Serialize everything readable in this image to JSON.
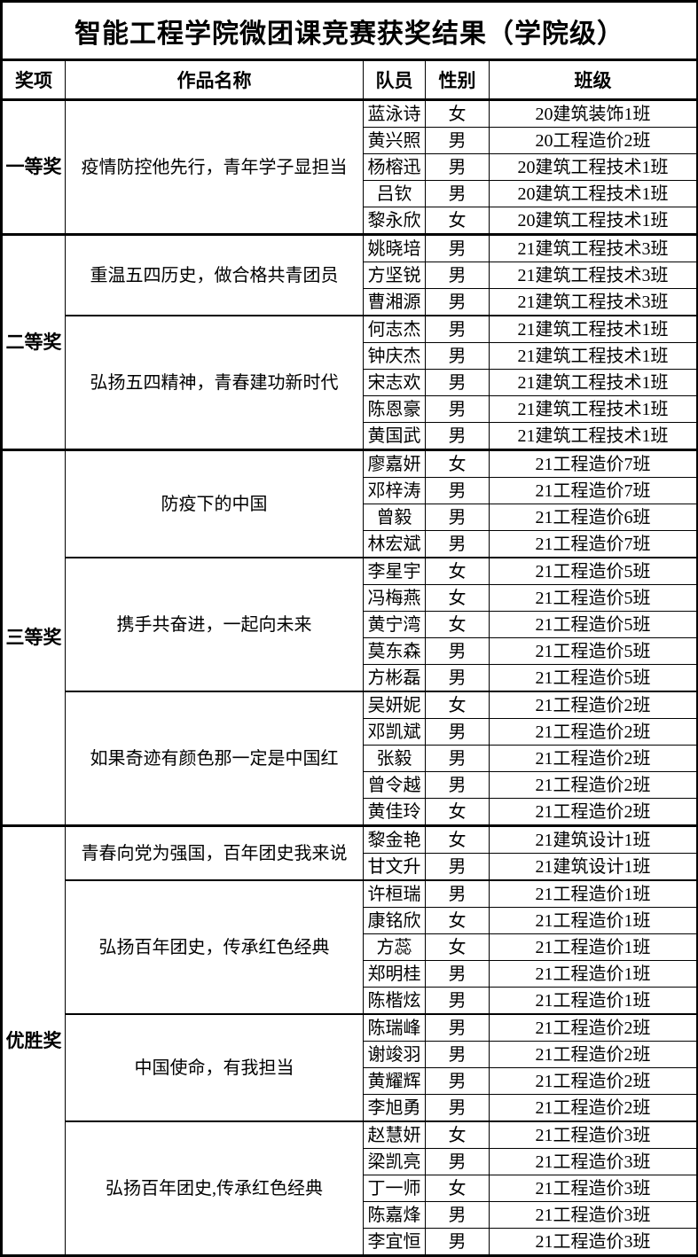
{
  "page": {
    "title": "智能工程学院微团课竞赛获奖结果（学院级）"
  },
  "table": {
    "headers": [
      "奖项",
      "作品名称",
      "队员",
      "性别",
      "班级"
    ],
    "awards": [
      {
        "name": "一等奖",
        "works": [
          {
            "title": "疫情防控他先行，青年学子显担当",
            "members": [
              {
                "name": "蓝泳诗",
                "gender": "女",
                "class": "20建筑装饰1班"
              },
              {
                "name": "黄兴照",
                "gender": "男",
                "class": "20工程造价2班"
              },
              {
                "name": "杨榕迅",
                "gender": "男",
                "class": "20建筑工程技术1班"
              },
              {
                "name": "吕钦",
                "gender": "男",
                "class": "20建筑工程技术1班"
              },
              {
                "name": "黎永欣",
                "gender": "女",
                "class": "20建筑工程技术1班"
              }
            ]
          }
        ]
      },
      {
        "name": "二等奖",
        "works": [
          {
            "title": "重温五四历史，做合格共青团员",
            "members": [
              {
                "name": "姚晓培",
                "gender": "男",
                "class": "21建筑工程技术3班"
              },
              {
                "name": "方坚锐",
                "gender": "男",
                "class": "21建筑工程技术3班"
              },
              {
                "name": "曹湘源",
                "gender": "男",
                "class": "21建筑工程技术3班"
              }
            ]
          },
          {
            "title": "弘扬五四精神，青春建功新时代",
            "members": [
              {
                "name": "何志杰",
                "gender": "男",
                "class": "21建筑工程技术1班"
              },
              {
                "name": "钟庆杰",
                "gender": "男",
                "class": "21建筑工程技术1班"
              },
              {
                "name": "宋志欢",
                "gender": "男",
                "class": "21建筑工程技术1班"
              },
              {
                "name": "陈恩豪",
                "gender": "男",
                "class": "21建筑工程技术1班"
              },
              {
                "name": "黄国武",
                "gender": "男",
                "class": "21建筑工程技术1班"
              }
            ]
          }
        ]
      },
      {
        "name": "三等奖",
        "works": [
          {
            "title": "防疫下的中国",
            "members": [
              {
                "name": "廖嘉妍",
                "gender": "女",
                "class": "21工程造价7班"
              },
              {
                "name": "邓梓涛",
                "gender": "男",
                "class": "21工程造价7班"
              },
              {
                "name": "曾毅",
                "gender": "男",
                "class": "21工程造价6班"
              },
              {
                "name": "林宏斌",
                "gender": "男",
                "class": "21工程造价7班"
              }
            ]
          },
          {
            "title": "携手共奋进，一起向未来",
            "members": [
              {
                "name": "李星宇",
                "gender": "女",
                "class": "21工程造价5班"
              },
              {
                "name": "冯梅燕",
                "gender": "女",
                "class": "21工程造价5班"
              },
              {
                "name": "黄宁湾",
                "gender": "女",
                "class": "21工程造价5班"
              },
              {
                "name": "莫东森",
                "gender": "男",
                "class": "21工程造价5班"
              },
              {
                "name": "方彬磊",
                "gender": "男",
                "class": "21工程造价5班"
              }
            ]
          },
          {
            "title": "如果奇迹有颜色那一定是中国红",
            "members": [
              {
                "name": "吴妍妮",
                "gender": "女",
                "class": "21工程造价2班"
              },
              {
                "name": "邓凯斌",
                "gender": "男",
                "class": "21工程造价2班"
              },
              {
                "name": "张毅",
                "gender": "男",
                "class": "21工程造价2班"
              },
              {
                "name": "曾令越",
                "gender": "男",
                "class": "21工程造价2班"
              },
              {
                "name": "黄佳玲",
                "gender": "女",
                "class": "21工程造价2班"
              }
            ]
          }
        ]
      },
      {
        "name": "优胜奖",
        "works": [
          {
            "title": "青春向党为强国，百年团史我来说",
            "members": [
              {
                "name": "黎金艳",
                "gender": "女",
                "class": "21建筑设计1班"
              },
              {
                "name": "甘文升",
                "gender": "男",
                "class": "21建筑设计1班"
              }
            ]
          },
          {
            "title": "弘扬百年团史，传承红色经典",
            "members": [
              {
                "name": "许桓瑞",
                "gender": "男",
                "class": "21工程造价1班"
              },
              {
                "name": "康铭欣",
                "gender": "女",
                "class": "21工程造价1班"
              },
              {
                "name": "方蕊",
                "gender": "女",
                "class": "21工程造价1班"
              },
              {
                "name": "郑明桂",
                "gender": "男",
                "class": "21工程造价1班"
              },
              {
                "name": "陈楷炫",
                "gender": "男",
                "class": "21工程造价1班"
              }
            ]
          },
          {
            "title": "中国使命，有我担当",
            "members": [
              {
                "name": "陈瑞峰",
                "gender": "男",
                "class": "21工程造价2班"
              },
              {
                "name": "谢竣羽",
                "gender": "男",
                "class": "21工程造价2班"
              },
              {
                "name": "黄耀辉",
                "gender": "男",
                "class": "21工程造价2班"
              },
              {
                "name": "李旭勇",
                "gender": "男",
                "class": "21工程造价2班"
              }
            ]
          },
          {
            "title": "弘扬百年团史,传承红色经典",
            "members": [
              {
                "name": "赵慧妍",
                "gender": "女",
                "class": "21工程造价3班"
              },
              {
                "name": "梁凯亮",
                "gender": "男",
                "class": "21工程造价3班"
              },
              {
                "name": "丁一师",
                "gender": "女",
                "class": "21工程造价3班"
              },
              {
                "name": "陈嘉烽",
                "gender": "男",
                "class": "21工程造价3班"
              },
              {
                "name": "李宜恒",
                "gender": "男",
                "class": "21工程造价3班"
              }
            ]
          }
        ]
      }
    ]
  }
}
